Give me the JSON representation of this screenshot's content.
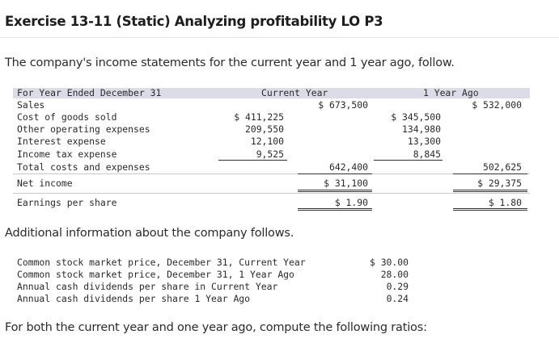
{
  "title": "Exercise 13-11 (Static) Analyzing profitability LO P3",
  "intro": "The company's income statements for the current year and 1 year ago, follow.",
  "table": {
    "header": {
      "label": "For Year Ended December 31",
      "current": "Current Year",
      "prior": "1 Year Ago"
    },
    "sales": {
      "label": "Sales",
      "current": "$ 673,500",
      "prior": "$ 532,000"
    },
    "cogs": {
      "label": "Cost of goods sold",
      "current": "$ 411,225",
      "prior": "$ 345,500"
    },
    "opex": {
      "label": "Other operating expenses",
      "current": "209,550",
      "prior": "134,980"
    },
    "interest": {
      "label": "Interest expense",
      "current": "12,100",
      "prior": "13,300"
    },
    "tax": {
      "label": "Income tax expense",
      "current": "9,525",
      "prior": "8,845"
    },
    "total": {
      "label": "Total costs and expenses",
      "current": "642,400",
      "prior": "502,625"
    },
    "net_income": {
      "label": "Net income",
      "current": "$ 31,100",
      "prior": "$ 29,375"
    },
    "eps": {
      "label": "Earnings per share",
      "current": "$ 1.90",
      "prior": "$ 1.80"
    }
  },
  "additional": "Additional information about the company follows.",
  "info": [
    {
      "label": "Common stock market price, December 31, Current Year",
      "value": "$ 30.00"
    },
    {
      "label": "Common stock market price, December 31, 1 Year Ago",
      "value": "28.00"
    },
    {
      "label": "Annual cash dividends per share in Current Year",
      "value": "0.29"
    },
    {
      "label": "Annual cash dividends per share 1 Year Ago",
      "value": "0.24"
    }
  ],
  "footer": "For both the current year and one year ago, compute the following ratios:"
}
